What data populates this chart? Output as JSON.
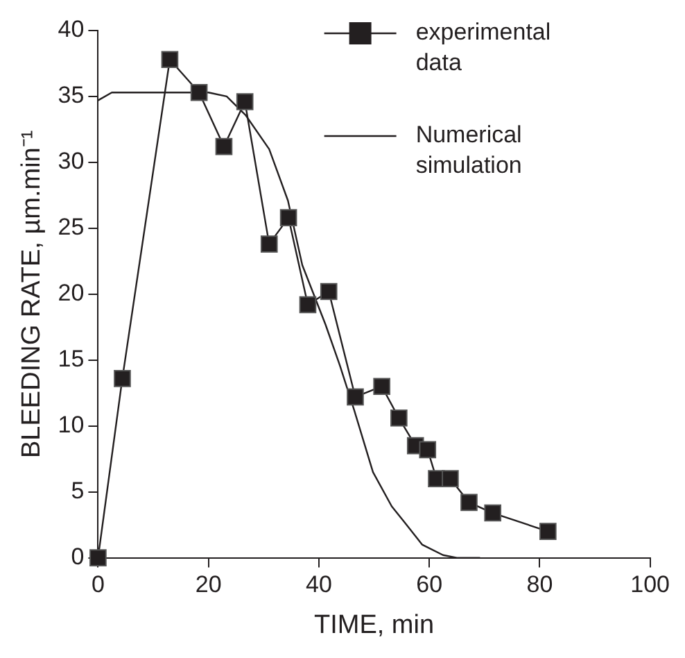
{
  "chart_data": {
    "type": "line",
    "xlabel": "TIME, min",
    "ylabel": "BLEEDING RATE, µm.min⁻¹",
    "xlim": [
      0,
      100
    ],
    "ylim": [
      0,
      40
    ],
    "xticks": [
      0,
      20,
      40,
      60,
      80,
      100
    ],
    "yticks": [
      0,
      5,
      10,
      15,
      20,
      25,
      30,
      35,
      40
    ],
    "grid": false,
    "legend": "top right",
    "series": [
      {
        "name": "experimental data",
        "color": "#231f20",
        "marker": "square",
        "line_style": "solid",
        "x": [
          0,
          4.4,
          13,
          18.3,
          22.8,
          26.6,
          31,
          34.5,
          38,
          41.8,
          46.6,
          51.4,
          54.5,
          57.5,
          59.7,
          61.3,
          63.8,
          67.2,
          71.5,
          81.5
        ],
        "values": [
          0,
          13.6,
          37.8,
          35.3,
          31.2,
          34.6,
          23.8,
          25.8,
          19.2,
          20.2,
          12.2,
          13,
          10.6,
          8.5,
          8.2,
          6,
          6,
          4.2,
          3.4,
          2
        ]
      },
      {
        "name": "Numerical simulation",
        "color": "#231f20",
        "marker": "none",
        "line_style": "solid",
        "x": [
          0,
          2.5,
          20,
          23.3,
          26.7,
          31,
          34.4,
          37,
          41.2,
          43.8,
          46.4,
          49.8,
          53.2,
          55.7,
          58.7,
          62.5,
          65,
          69.2
        ],
        "values": [
          34.7,
          35.3,
          35.3,
          35,
          33.6,
          31,
          27.1,
          22.2,
          17.7,
          14.6,
          11.2,
          6.5,
          3.9,
          2.6,
          1,
          0.2,
          0,
          0
        ]
      }
    ]
  }
}
